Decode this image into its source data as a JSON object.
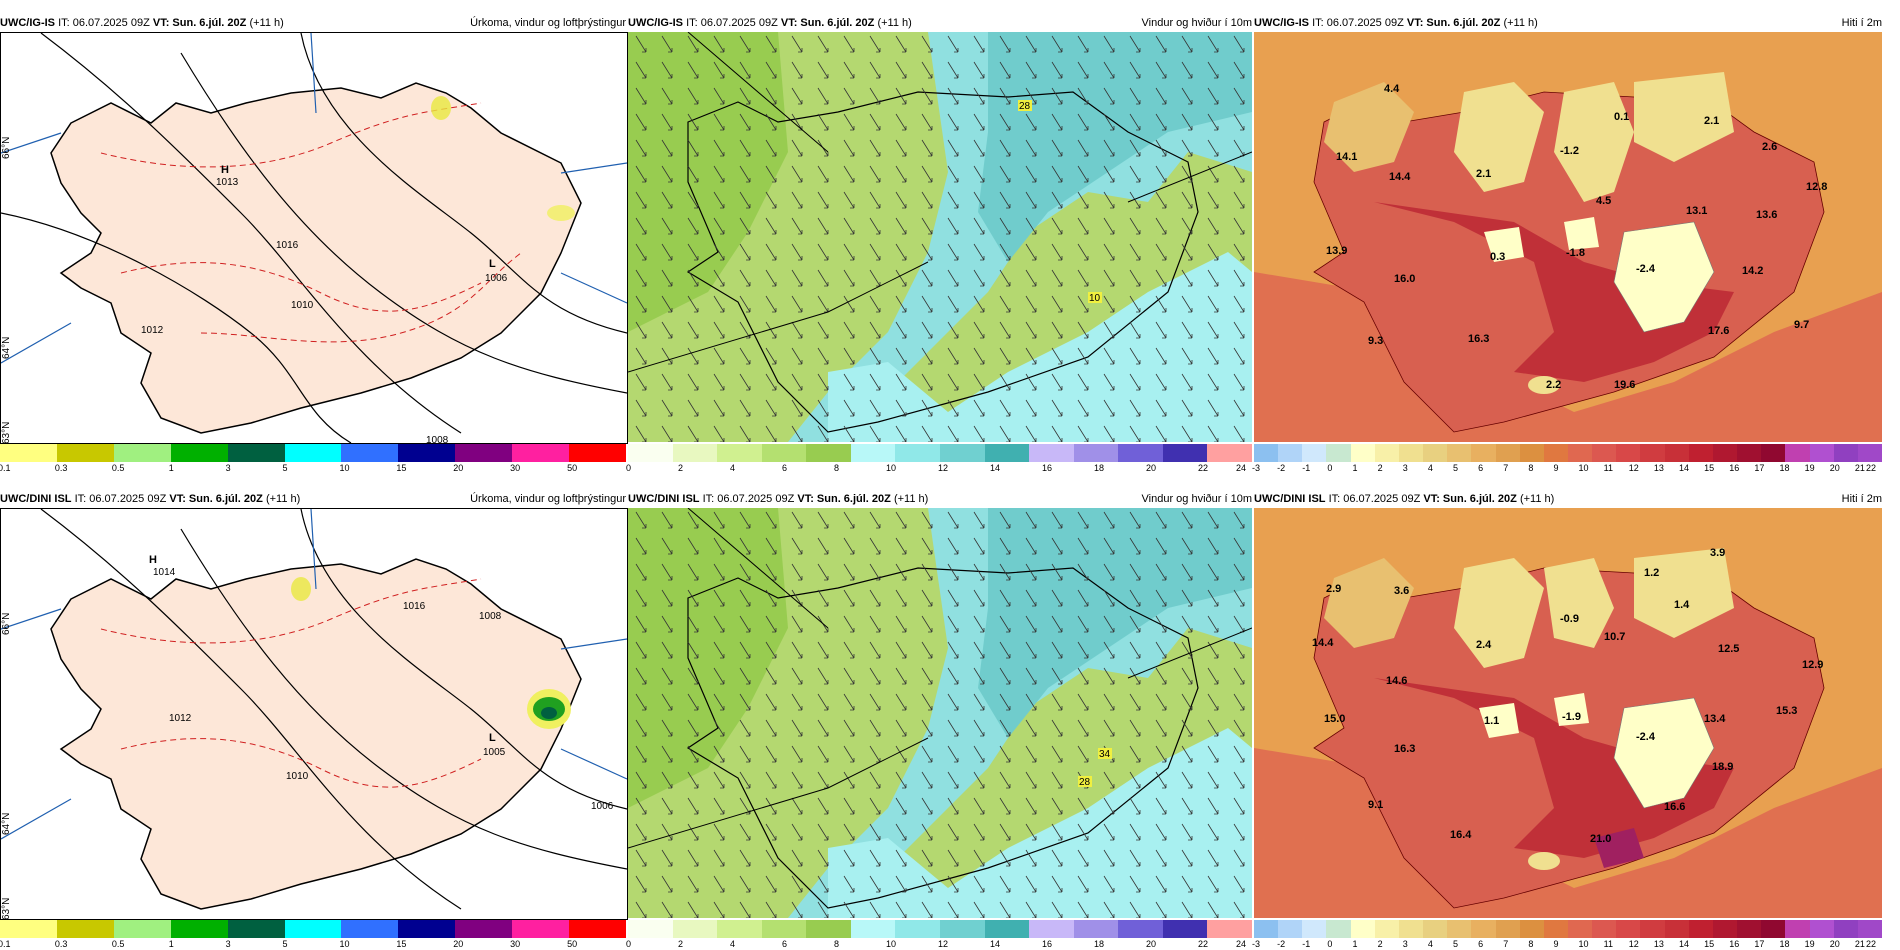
{
  "rows": [
    {
      "model": "UWC/IG-IS",
      "it": "IT: 06.07.2025 09Z",
      "vt": "VT: Sun. 6.júl. 20Z",
      "step": "(+11 h)",
      "panels": [
        {
          "title": "Úrkoma, vindur og loftþrýstingur",
          "pressure": [
            {
              "text": "H",
              "sub": "1013"
            },
            {
              "text": "L",
              "sub": "1006"
            }
          ],
          "isobars": [
            "1010",
            "1012",
            "1016",
            "1008"
          ],
          "lat_ticks": [
            "66°N",
            "64°N",
            "63°N"
          ]
        },
        {
          "title": "Vindur og hviður í 10m",
          "gusts": [
            "28",
            "10"
          ]
        },
        {
          "title": "Hiti í 2m",
          "temps": [
            "4.4",
            "14.1",
            "14.4",
            "-1.2",
            "0.1",
            "2.1",
            "2.1",
            "2.6",
            "4.5",
            "13.1",
            "13.6",
            "12.8",
            "13.9",
            "16.0",
            "0.3",
            "-1.8",
            "-2.4",
            "14.2",
            "9.3",
            "16.3",
            "17.6",
            "9.7",
            "2.2",
            "19.6"
          ]
        }
      ]
    },
    {
      "model": "UWC/DINI ISL",
      "it": "IT: 06.07.2025 09Z",
      "vt": "VT: Sun. 6.júl. 20Z",
      "step": "(+11 h)",
      "panels": [
        {
          "title": "Úrkoma, vindur og loftþrýstingur",
          "pressure": [
            {
              "text": "H",
              "sub": "1014"
            },
            {
              "text": "L",
              "sub": "1005"
            }
          ],
          "isobars": [
            "1010",
            "1012",
            "1016",
            "1008",
            "1006"
          ],
          "lat_ticks": [
            "66°N",
            "64°N",
            "63°N"
          ]
        },
        {
          "title": "Vindur og hviður í 10m",
          "gusts": [
            "34",
            "28"
          ]
        },
        {
          "title": "Hiti í 2m",
          "temps": [
            "2.9",
            "3.6",
            "1.2",
            "3.9",
            "14.4",
            "-0.9",
            "1.4",
            "2.4",
            "10.7",
            "12.5",
            "12.9",
            "14.6",
            "15.0",
            "1.1",
            "-1.9",
            "-2.4",
            "13.4",
            "15.3",
            "16.3",
            "18.9",
            "9.1",
            "16.6",
            "16.4",
            "21.0"
          ]
        }
      ]
    }
  ],
  "colorbars": {
    "precip": {
      "labels": [
        "0.1",
        "0.3",
        "0.5",
        "1",
        "3",
        "5",
        "10",
        "15",
        "20",
        "30",
        "50"
      ],
      "colors": [
        "#ffff80",
        "#c8c800",
        "#a0f080",
        "#00b000",
        "#006040",
        "#00ffff",
        "#3070ff",
        "#000090",
        "#800080",
        "#ff20a0",
        "#ff0000"
      ]
    },
    "wind": {
      "labels": [
        "0",
        "2",
        "4",
        "6",
        "8",
        "10",
        "12",
        "14",
        "16",
        "18",
        "20",
        "22",
        "24"
      ],
      "colors": [
        "#fafff0",
        "#e8f8c0",
        "#d0f090",
        "#b4e070",
        "#98cc50",
        "#b8f8f8",
        "#90e8e8",
        "#70d0d0",
        "#40b0b0",
        "#c8b8f8",
        "#a090e8",
        "#7060d8",
        "#4030b0",
        "#ffa0a0"
      ]
    },
    "temp": {
      "labels": [
        "-3",
        "-2",
        "-1",
        "0",
        "1",
        "2",
        "3",
        "4",
        "5",
        "6",
        "7",
        "8",
        "9",
        "10",
        "11",
        "12",
        "13",
        "14",
        "15",
        "16",
        "17",
        "18",
        "19",
        "20",
        "21",
        "22"
      ],
      "colors": [
        "#8cc0f0",
        "#b0d4f8",
        "#d0e8fc",
        "#c8e8d0",
        "#ffffc8",
        "#f8f0a8",
        "#f0e090",
        "#e8d080",
        "#e8c070",
        "#e8b060",
        "#e0a050",
        "#dc9040",
        "#e07840",
        "#e06850",
        "#dc5850",
        "#d84848",
        "#d03c40",
        "#c83038",
        "#c02030",
        "#b01830",
        "#a01030",
        "#900830",
        "#c040b0",
        "#b050d0",
        "#9040c0",
        "#a048c8"
      ]
    }
  }
}
